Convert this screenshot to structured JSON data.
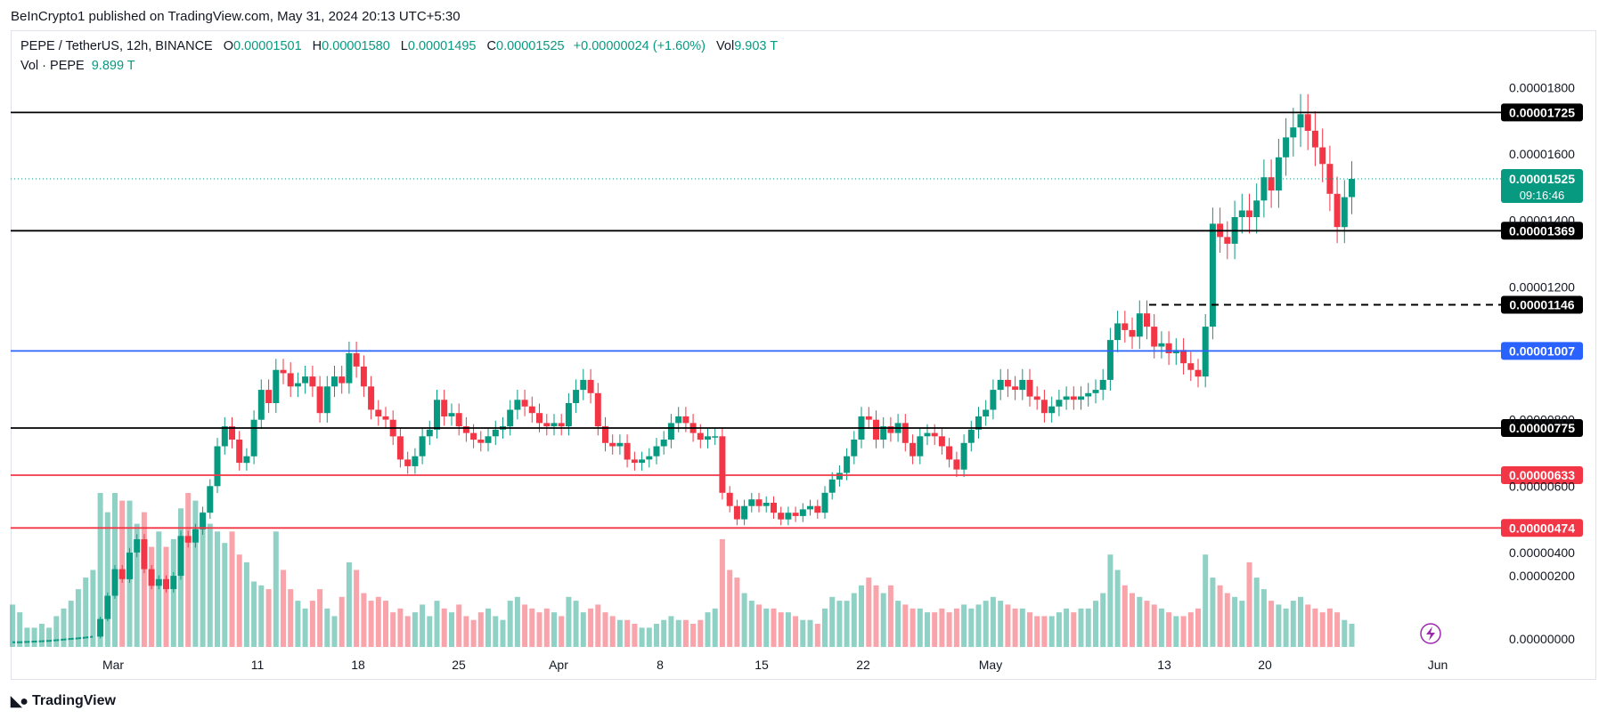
{
  "header": {
    "published": "BeInCrypto1 published on TradingView.com, May 31, 2024 20:13 UTC+5:30"
  },
  "legend": {
    "symbol": "PEPE / TetherUS, 12h, BINANCE",
    "open_label": "O",
    "open": "0.00001501",
    "high_label": "H",
    "high": "0.00001580",
    "low_label": "L",
    "low": "0.00001495",
    "close_label": "C",
    "close": "0.00001525",
    "change": "+0.00000024 (+1.60%)",
    "vol_label": "Vol",
    "vol": "9.903 T",
    "vol_series_label": "Vol · PEPE",
    "vol_series_value": "9.899 T"
  },
  "footer": {
    "brand": "TradingView"
  },
  "chart_data": {
    "type": "candlestick",
    "xlabels": [
      "Mar",
      "11",
      "18",
      "25",
      "Apr",
      "8",
      "15",
      "22",
      "May",
      "13",
      "20",
      "Jun"
    ],
    "y_ticks": [
      "0.00001800",
      "0.00001600",
      "0.00001400",
      "0.00001200",
      "0.00000800",
      "0.00000600",
      "0.00000400",
      "0.00000200",
      "0.00000000"
    ],
    "ylim": [
      1.4e-06,
      1.86e-05
    ],
    "levels": [
      {
        "value": "0.00001725",
        "price": 1.725e-05,
        "color": "#000000",
        "style": "solid",
        "label_bg": "#000000"
      },
      {
        "value": "0.00001369",
        "price": 1.369e-05,
        "color": "#000000",
        "style": "solid",
        "label_bg": "#000000"
      },
      {
        "value": "0.00001146",
        "price": 1.146e-05,
        "color": "#000000",
        "style": "dashed",
        "label_bg": "#000000"
      },
      {
        "value": "0.00001007",
        "price": 1.007e-05,
        "color": "#2962ff",
        "style": "solid",
        "label_bg": "#2962ff"
      },
      {
        "value": "0.00000775",
        "price": 7.75e-06,
        "color": "#000000",
        "style": "solid",
        "label_bg": "#000000"
      },
      {
        "value": "0.00000633",
        "price": 6.33e-06,
        "color": "#f23645",
        "style": "solid",
        "label_bg": "#f23645"
      },
      {
        "value": "0.00000474",
        "price": 4.74e-06,
        "color": "#f23645",
        "style": "solid",
        "label_bg": "#f23645"
      }
    ],
    "last_price": {
      "value": "0.00001525",
      "countdown": "09:16:46",
      "color": "#089981",
      "price": 1.525e-05
    },
    "candles_start_index": 12,
    "closes": [
      1.3,
      1.3,
      1.31,
      1.32,
      1.33,
      1.34,
      1.36,
      1.38,
      1.4,
      1.42,
      1.44,
      1.47,
      2.0,
      2.7,
      3.5,
      3.2,
      4.0,
      4.4,
      3.5,
      3.0,
      3.2,
      2.9,
      3.3,
      4.5,
      4.3,
      4.7,
      5.2,
      6.0,
      7.2,
      7.8,
      7.4,
      6.7,
      6.9,
      8.0,
      8.9,
      8.5,
      9.5,
      9.4,
      9.0,
      9.1,
      9.3,
      9.0,
      8.2,
      9.0,
      9.3,
      9.1,
      10.0,
      9.6,
      9.0,
      8.3,
      8.1,
      8.0,
      7.5,
      6.8,
      6.6,
      6.9,
      7.5,
      7.7,
      8.6,
      8.1,
      8.2,
      7.8,
      7.6,
      7.4,
      7.3,
      7.5,
      7.7,
      7.8,
      8.3,
      8.6,
      8.4,
      8.2,
      7.9,
      7.8,
      7.9,
      7.8,
      8.5,
      8.9,
      9.2,
      8.8,
      7.8,
      7.3,
      7.2,
      7.3,
      6.8,
      6.7,
      6.8,
      6.9,
      7.2,
      7.4,
      7.9,
      8.1,
      7.9,
      7.6,
      7.4,
      7.5,
      7.5,
      5.8,
      5.4,
      5.0,
      5.4,
      5.6,
      5.4,
      5.5,
      5.2,
      5.0,
      5.2,
      5.1,
      5.3,
      5.4,
      5.2,
      5.8,
      6.2,
      6.4,
      6.9,
      7.4,
      8.1,
      8.0,
      7.4,
      7.8,
      7.6,
      7.9,
      7.3,
      6.9,
      7.5,
      7.6,
      7.5,
      7.2,
      6.8,
      6.5,
      7.3,
      7.7,
      8.1,
      8.3,
      8.9,
      9.2,
      9.0,
      8.9,
      9.2,
      8.7,
      8.6,
      8.2,
      8.4,
      8.6,
      8.7,
      8.6,
      8.7,
      8.8,
      8.9,
      9.2,
      10.4,
      10.9,
      10.7,
      10.5,
      11.2,
      10.8,
      10.2,
      10.3,
      10.0,
      10.1,
      9.7,
      9.5,
      9.3,
      10.8,
      13.9,
      13.5,
      13.3,
      14.1,
      14.3,
      14.1,
      14.6,
      15.3,
      14.9,
      15.9,
      16.5,
      16.8,
      17.2,
      16.7,
      16.2,
      15.7,
      14.8,
      13.8,
      14.7,
      15.25
    ],
    "volumes": [
      0.11,
      0.09,
      0.05,
      0.05,
      0.06,
      0.05,
      0.08,
      0.1,
      0.12,
      0.15,
      0.18,
      0.2,
      0.4,
      0.35,
      0.4,
      0.38,
      0.38,
      0.32,
      0.35,
      0.26,
      0.3,
      0.26,
      0.28,
      0.36,
      0.4,
      0.38,
      0.35,
      0.32,
      0.3,
      0.27,
      0.3,
      0.24,
      0.22,
      0.17,
      0.16,
      0.15,
      0.3,
      0.2,
      0.15,
      0.12,
      0.1,
      0.12,
      0.15,
      0.1,
      0.08,
      0.13,
      0.22,
      0.2,
      0.14,
      0.12,
      0.13,
      0.12,
      0.09,
      0.1,
      0.08,
      0.09,
      0.11,
      0.08,
      0.12,
      0.1,
      0.09,
      0.11,
      0.08,
      0.07,
      0.09,
      0.1,
      0.08,
      0.07,
      0.12,
      0.13,
      0.11,
      0.1,
      0.09,
      0.1,
      0.09,
      0.08,
      0.13,
      0.12,
      0.09,
      0.1,
      0.11,
      0.09,
      0.08,
      0.07,
      0.07,
      0.06,
      0.05,
      0.05,
      0.06,
      0.07,
      0.08,
      0.07,
      0.07,
      0.06,
      0.07,
      0.09,
      0.1,
      0.28,
      0.2,
      0.18,
      0.14,
      0.12,
      0.11,
      0.1,
      0.1,
      0.09,
      0.09,
      0.08,
      0.07,
      0.07,
      0.06,
      0.1,
      0.13,
      0.12,
      0.12,
      0.14,
      0.16,
      0.18,
      0.16,
      0.14,
      0.16,
      0.12,
      0.11,
      0.1,
      0.1,
      0.09,
      0.09,
      0.1,
      0.09,
      0.1,
      0.11,
      0.1,
      0.11,
      0.12,
      0.13,
      0.12,
      0.11,
      0.1,
      0.1,
      0.09,
      0.08,
      0.08,
      0.08,
      0.09,
      0.1,
      0.09,
      0.1,
      0.1,
      0.12,
      0.14,
      0.24,
      0.2,
      0.16,
      0.14,
      0.13,
      0.12,
      0.11,
      0.1,
      0.09,
      0.08,
      0.08,
      0.09,
      0.1,
      0.24,
      0.18,
      0.16,
      0.14,
      0.13,
      0.12,
      0.22,
      0.18,
      0.15,
      0.12,
      0.11,
      0.1,
      0.12,
      0.13,
      0.11,
      0.1,
      0.09,
      0.1,
      0.09,
      0.07,
      0.06
    ]
  }
}
